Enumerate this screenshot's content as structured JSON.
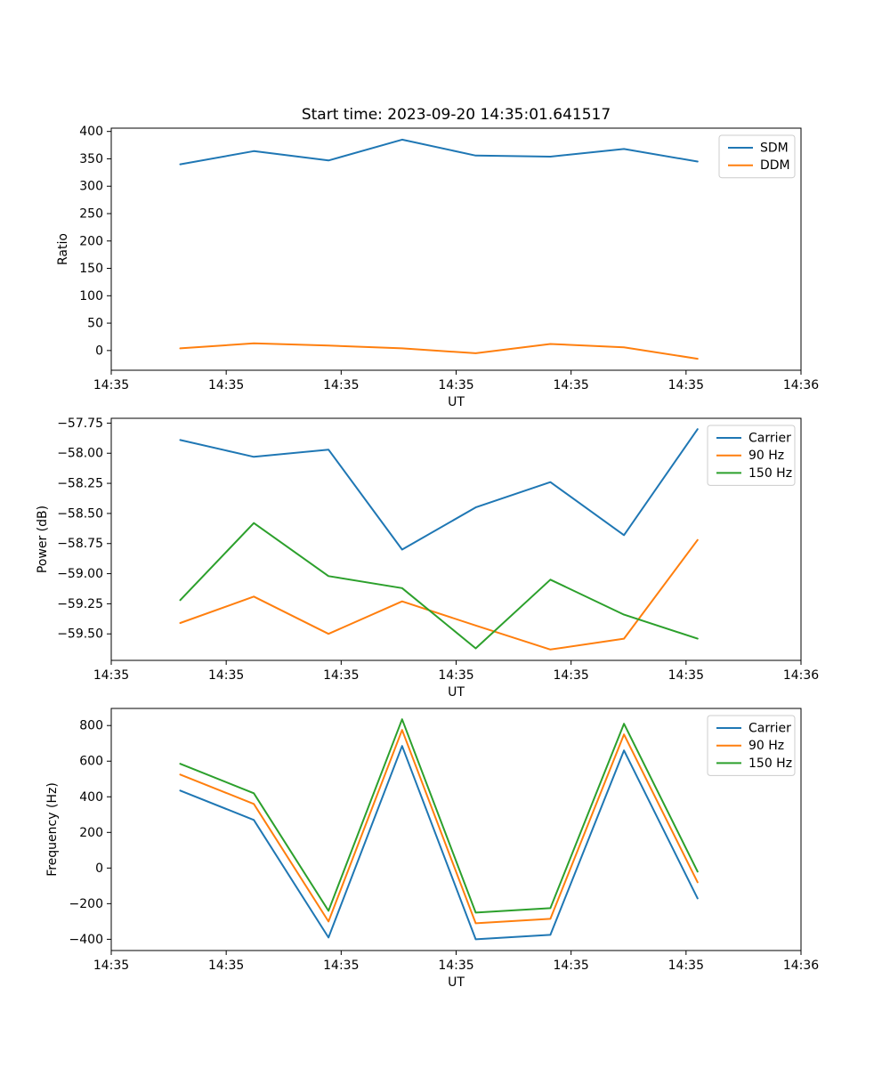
{
  "figure": {
    "background": "#ffffff"
  },
  "chart_data": [
    {
      "type": "line",
      "title": "Start time: 2023-09-20 14:35:01.641517",
      "xlabel": "UT",
      "ylabel": "Ratio",
      "grid": false,
      "legend_position": "upper right",
      "xlim": [
        0,
        60
      ],
      "ylim": [
        -36,
        406
      ],
      "x_seconds": [
        6.0,
        12.4,
        18.9,
        25.3,
        31.7,
        38.2,
        44.6,
        51.0
      ],
      "xtick_values": [
        0,
        10,
        20,
        30,
        40,
        50,
        60
      ],
      "xtick_labels": [
        "14:35",
        "14:35",
        "14:35",
        "14:35",
        "14:35",
        "14:35",
        "14:36"
      ],
      "ytick_values": [
        0,
        50,
        100,
        150,
        200,
        250,
        300,
        350,
        400
      ],
      "ytick_labels": [
        "0",
        "50",
        "100",
        "150",
        "200",
        "250",
        "300",
        "350",
        "400"
      ],
      "series": [
        {
          "name": "SDM",
          "color": "#1f77b4",
          "values": [
            340,
            364,
            347,
            385,
            356,
            354,
            368,
            345
          ]
        },
        {
          "name": "DDM",
          "color": "#ff7f0e",
          "values": [
            4,
            13,
            9,
            4,
            -5,
            12,
            6,
            -15
          ]
        }
      ]
    },
    {
      "type": "line",
      "title": "",
      "xlabel": "UT",
      "ylabel": "Power (dB)",
      "grid": false,
      "legend_position": "upper right",
      "xlim": [
        0,
        60
      ],
      "ylim": [
        -59.72,
        -57.71
      ],
      "x_seconds": [
        6.0,
        12.4,
        18.9,
        25.3,
        31.7,
        38.2,
        44.6,
        51.0
      ],
      "xtick_values": [
        0,
        10,
        20,
        30,
        40,
        50,
        60
      ],
      "xtick_labels": [
        "14:35",
        "14:35",
        "14:35",
        "14:35",
        "14:35",
        "14:35",
        "14:36"
      ],
      "ytick_values": [
        -57.75,
        -58.0,
        -58.25,
        -58.5,
        -58.75,
        -59.0,
        -59.25,
        -59.5
      ],
      "ytick_labels": [
        "−57.75",
        "−58.00",
        "−58.25",
        "−58.50",
        "−58.75",
        "−59.00",
        "−59.25",
        "−59.50"
      ],
      "series": [
        {
          "name": "Carrier",
          "color": "#1f77b4",
          "values": [
            -57.89,
            -58.03,
            -57.97,
            -58.8,
            -58.45,
            -58.24,
            -58.68,
            -57.8
          ]
        },
        {
          "name": "90 Hz",
          "color": "#ff7f0e",
          "values": [
            -59.41,
            -59.19,
            -59.5,
            -59.23,
            -59.43,
            -59.63,
            -59.54,
            -58.72
          ]
        },
        {
          "name": "150 Hz",
          "color": "#2ca02c",
          "values": [
            -59.22,
            -58.58,
            -59.02,
            -59.12,
            -59.62,
            -59.05,
            -59.34,
            -59.54
          ]
        }
      ]
    },
    {
      "type": "line",
      "title": "",
      "xlabel": "UT",
      "ylabel": "Frequency (Hz)",
      "grid": false,
      "legend_position": "upper right",
      "xlim": [
        0,
        60
      ],
      "ylim": [
        -463,
        896
      ],
      "x_seconds": [
        6.0,
        12.4,
        18.9,
        25.3,
        31.7,
        38.2,
        44.6,
        51.0
      ],
      "xtick_values": [
        0,
        10,
        20,
        30,
        40,
        50,
        60
      ],
      "xtick_labels": [
        "14:35",
        "14:35",
        "14:35",
        "14:35",
        "14:35",
        "14:35",
        "14:36"
      ],
      "ytick_values": [
        -400,
        -200,
        0,
        200,
        400,
        600,
        800
      ],
      "ytick_labels": [
        "−400",
        "−200",
        "0",
        "200",
        "400",
        "600",
        "800"
      ],
      "series": [
        {
          "name": "Carrier",
          "color": "#1f77b4",
          "values": [
            435,
            270,
            -390,
            685,
            -400,
            -375,
            660,
            -170
          ]
        },
        {
          "name": "90 Hz",
          "color": "#ff7f0e",
          "values": [
            525,
            360,
            -300,
            775,
            -310,
            -285,
            750,
            -80
          ]
        },
        {
          "name": "150 Hz",
          "color": "#2ca02c",
          "values": [
            585,
            420,
            -240,
            835,
            -250,
            -225,
            810,
            -20
          ]
        }
      ]
    }
  ]
}
